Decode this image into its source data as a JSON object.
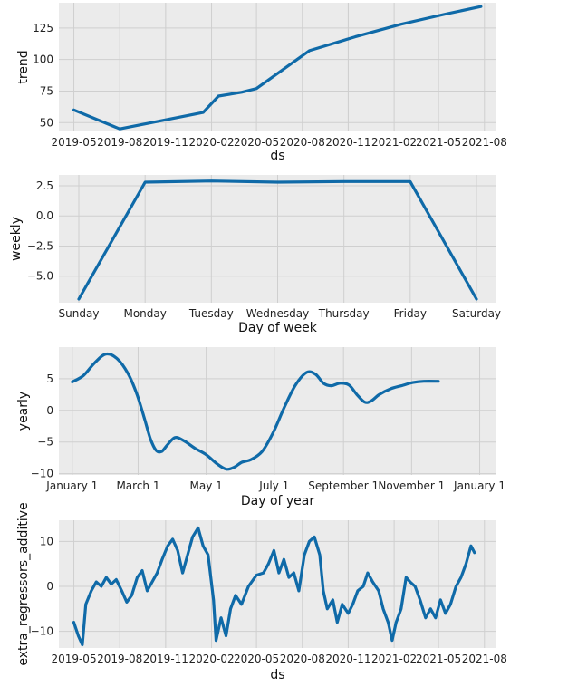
{
  "chart_data": [
    {
      "type": "line",
      "ylabel": "trend",
      "xlabel": "ds",
      "x_ticks": [
        "2019-05",
        "2019-08",
        "2019-11",
        "2020-02",
        "2020-05",
        "2020-08",
        "2020-11",
        "2021-02",
        "2021-05",
        "2021-08"
      ],
      "y_ticks": [
        "50",
        "75",
        "100",
        "125"
      ],
      "ylim": [
        43,
        145
      ],
      "xlim": [
        "2019-04-01",
        "2021-08-25"
      ],
      "grid": true,
      "color": "#0f6aa8",
      "series": [
        {
          "points": [
            [
              "2019-05-01",
              60
            ],
            [
              "2019-08-01",
              45
            ],
            [
              "2020-01-15",
              58
            ],
            [
              "2020-02-15",
              71
            ],
            [
              "2020-04-01",
              74
            ],
            [
              "2020-05-01",
              77
            ],
            [
              "2020-08-15",
              107
            ],
            [
              "2020-11-15",
              118
            ],
            [
              "2021-02-15",
              128
            ],
            [
              "2021-05-15",
              136
            ],
            [
              "2021-07-25",
              142
            ]
          ]
        }
      ]
    },
    {
      "type": "line",
      "ylabel": "weekly",
      "xlabel": "Day of week",
      "categories": [
        "Sunday",
        "Monday",
        "Tuesday",
        "Wednesday",
        "Thursday",
        "Friday",
        "Saturday"
      ],
      "y_ticks": [
        "2.5",
        "0.0",
        "−2.5",
        "−5.0"
      ],
      "y_tick_values": [
        2.5,
        0.0,
        -2.5,
        -5.0
      ],
      "ylim": [
        -7.2,
        3.4
      ],
      "grid": true,
      "color": "#0f6aa8",
      "values": [
        -6.9,
        2.8,
        2.9,
        2.8,
        2.85,
        2.85,
        -6.9
      ]
    },
    {
      "type": "line",
      "ylabel": "yearly",
      "xlabel": "Day of year",
      "x_ticks": [
        "January 1",
        "March 1",
        "May 1",
        "July 1",
        "September 1",
        "November 1",
        "January 1"
      ],
      "x_tick_values": [
        0,
        59,
        120,
        181,
        243,
        304,
        365
      ],
      "y_ticks": [
        "5",
        "0",
        "−5",
        "−10"
      ],
      "y_tick_values": [
        5,
        0,
        -5,
        -10
      ],
      "ylim": [
        -10.2,
        10.0
      ],
      "grid": true,
      "color": "#0f6aa8",
      "points": [
        [
          0,
          4.5
        ],
        [
          10,
          5.5
        ],
        [
          20,
          7.5
        ],
        [
          30,
          8.9
        ],
        [
          40,
          8.2
        ],
        [
          50,
          5.8
        ],
        [
          58,
          2.5
        ],
        [
          65,
          -1.5
        ],
        [
          70,
          -4.5
        ],
        [
          75,
          -6.3
        ],
        [
          80,
          -6.5
        ],
        [
          85,
          -5.5
        ],
        [
          92,
          -4.3
        ],
        [
          100,
          -4.8
        ],
        [
          110,
          -6.0
        ],
        [
          120,
          -7.0
        ],
        [
          130,
          -8.5
        ],
        [
          138,
          -9.3
        ],
        [
          145,
          -9.0
        ],
        [
          152,
          -8.2
        ],
        [
          160,
          -7.8
        ],
        [
          170,
          -6.5
        ],
        [
          180,
          -3.5
        ],
        [
          190,
          0.5
        ],
        [
          200,
          4.0
        ],
        [
          210,
          6.0
        ],
        [
          218,
          5.7
        ],
        [
          225,
          4.3
        ],
        [
          232,
          3.9
        ],
        [
          240,
          4.3
        ],
        [
          248,
          4.0
        ],
        [
          255,
          2.5
        ],
        [
          262,
          1.3
        ],
        [
          268,
          1.5
        ],
        [
          275,
          2.5
        ],
        [
          285,
          3.4
        ],
        [
          295,
          3.9
        ],
        [
          305,
          4.4
        ],
        [
          315,
          4.6
        ],
        [
          328,
          4.6
        ]
      ]
    },
    {
      "type": "line",
      "ylabel": "extra_regressors_additive",
      "xlabel": "ds",
      "x_ticks": [
        "2019-05",
        "2019-08",
        "2019-11",
        "2020-02",
        "2020-05",
        "2020-08",
        "2020-11",
        "2021-02",
        "2021-05",
        "2021-08"
      ],
      "y_ticks": [
        "10",
        "0",
        "−10"
      ],
      "y_tick_values": [
        10,
        0,
        -10
      ],
      "ylim": [
        -13.7,
        14.7
      ],
      "xlim": [
        "2019-04-01",
        "2021-08-25"
      ],
      "grid": true,
      "color": "#0f6aa8",
      "series": [
        {
          "points": [
            [
              "2019-05-01",
              -8
            ],
            [
              "2019-05-10",
              -11
            ],
            [
              "2019-05-18",
              -13
            ],
            [
              "2019-05-25",
              -4
            ],
            [
              "2019-06-05",
              -1
            ],
            [
              "2019-06-15",
              1
            ],
            [
              "2019-06-25",
              0
            ],
            [
              "2019-07-05",
              2
            ],
            [
              "2019-07-15",
              0.5
            ],
            [
              "2019-07-25",
              1.5
            ],
            [
              "2019-08-05",
              -1
            ],
            [
              "2019-08-15",
              -3.5
            ],
            [
              "2019-08-25",
              -2
            ],
            [
              "2019-09-05",
              2
            ],
            [
              "2019-09-15",
              3.5
            ],
            [
              "2019-09-25",
              -1
            ],
            [
              "2019-10-05",
              1
            ],
            [
              "2019-10-15",
              3
            ],
            [
              "2019-10-25",
              6
            ],
            [
              "2019-11-05",
              9
            ],
            [
              "2019-11-15",
              10.5
            ],
            [
              "2019-11-25",
              8
            ],
            [
              "2019-12-05",
              3
            ],
            [
              "2019-12-15",
              7
            ],
            [
              "2019-12-25",
              11
            ],
            [
              "2020-01-05",
              13
            ],
            [
              "2020-01-15",
              9
            ],
            [
              "2020-01-25",
              7
            ],
            [
              "2020-02-05",
              -3
            ],
            [
              "2020-02-10",
              -12
            ],
            [
              "2020-02-20",
              -7
            ],
            [
              "2020-03-01",
              -11
            ],
            [
              "2020-03-10",
              -5
            ],
            [
              "2020-03-20",
              -2
            ],
            [
              "2020-04-01",
              -4
            ],
            [
              "2020-04-15",
              0
            ],
            [
              "2020-05-01",
              2.5
            ],
            [
              "2020-05-15",
              3
            ],
            [
              "2020-05-25",
              5
            ],
            [
              "2020-06-05",
              8
            ],
            [
              "2020-06-15",
              3
            ],
            [
              "2020-06-25",
              6
            ],
            [
              "2020-07-05",
              2
            ],
            [
              "2020-07-15",
              3
            ],
            [
              "2020-07-25",
              -1
            ],
            [
              "2020-08-05",
              7
            ],
            [
              "2020-08-15",
              10
            ],
            [
              "2020-08-25",
              11
            ],
            [
              "2020-09-05",
              7
            ],
            [
              "2020-09-12",
              -1
            ],
            [
              "2020-09-20",
              -5
            ],
            [
              "2020-10-01",
              -3
            ],
            [
              "2020-10-10",
              -8
            ],
            [
              "2020-10-20",
              -4
            ],
            [
              "2020-11-01",
              -6
            ],
            [
              "2020-11-10",
              -4
            ],
            [
              "2020-11-20",
              -1
            ],
            [
              "2020-12-01",
              0
            ],
            [
              "2020-12-10",
              3
            ],
            [
              "2020-12-20",
              1
            ],
            [
              "2021-01-01",
              -1
            ],
            [
              "2021-01-10",
              -5
            ],
            [
              "2021-01-20",
              -8
            ],
            [
              "2021-01-28",
              -12
            ],
            [
              "2021-02-05",
              -8
            ],
            [
              "2021-02-15",
              -5
            ],
            [
              "2021-02-25",
              2
            ],
            [
              "2021-03-05",
              1
            ],
            [
              "2021-03-15",
              0
            ],
            [
              "2021-03-25",
              -3
            ],
            [
              "2021-04-05",
              -7
            ],
            [
              "2021-04-15",
              -5
            ],
            [
              "2021-04-25",
              -7
            ],
            [
              "2021-05-05",
              -3
            ],
            [
              "2021-05-15",
              -6
            ],
            [
              "2021-05-25",
              -4
            ],
            [
              "2021-06-05",
              0
            ],
            [
              "2021-06-15",
              2
            ],
            [
              "2021-06-25",
              5
            ],
            [
              "2021-07-05",
              9
            ],
            [
              "2021-07-12",
              7.5
            ]
          ]
        }
      ]
    }
  ]
}
